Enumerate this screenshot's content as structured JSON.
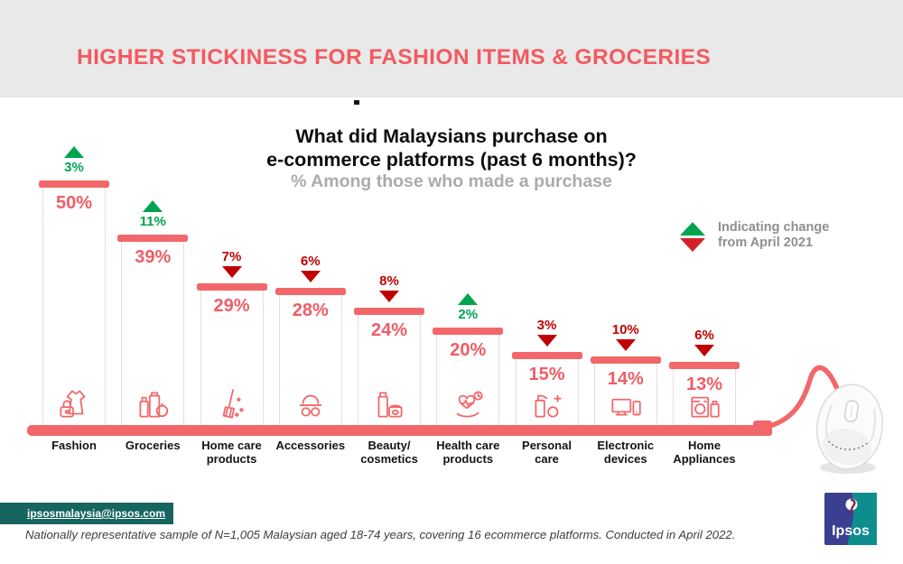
{
  "header": {
    "title": "HIGHER STICKINESS FOR FASHION ITEMS & GROCERIES"
  },
  "chart": {
    "title_line1": "What did Malaysians purchase on",
    "title_line2": "e-commerce platforms (past 6 months)?",
    "subtitle": "% Among those who made a purchase",
    "legend_line1": "Indicating change",
    "legend_line2": "from April 2021"
  },
  "chart_data": {
    "type": "bar",
    "title": "What did Malaysians purchase on e-commerce platforms (past 6 months)?",
    "subtitle": "% Among those who made a purchase",
    "unit": "percent of purchasers",
    "ylim": [
      0,
      50
    ],
    "grid": false,
    "legend_position": "right",
    "categories": [
      "Fashion",
      "Groceries",
      "Home care products",
      "Accessories",
      "Beauty/cosmetics",
      "Health care products",
      "Personal care",
      "Electronic devices",
      "Home Appliances"
    ],
    "values": [
      50,
      39,
      29,
      28,
      24,
      20,
      15,
      14,
      13
    ],
    "change_vs_april_2021": [
      {
        "category": "Fashion",
        "change_pct": 3,
        "direction": "up"
      },
      {
        "category": "Groceries",
        "change_pct": 11,
        "direction": "up"
      },
      {
        "category": "Home care products",
        "change_pct": 7,
        "direction": "down"
      },
      {
        "category": "Accessories",
        "change_pct": 6,
        "direction": "down"
      },
      {
        "category": "Beauty/cosmetics",
        "change_pct": 8,
        "direction": "down"
      },
      {
        "category": "Health care products",
        "change_pct": 2,
        "direction": "up"
      },
      {
        "category": "Personal care",
        "change_pct": 3,
        "direction": "down"
      },
      {
        "category": "Electronic devices",
        "change_pct": 10,
        "direction": "down"
      },
      {
        "category": "Home Appliances",
        "change_pct": 6,
        "direction": "down"
      }
    ],
    "items": [
      {
        "category_display": "Fashion",
        "value": 50,
        "value_label": "50%",
        "change_label": "3%",
        "direction": "up",
        "icon": "fashion-icon"
      },
      {
        "category_display": "Groceries",
        "value": 39,
        "value_label": "39%",
        "change_label": "11%",
        "direction": "up",
        "icon": "groceries-icon"
      },
      {
        "category_display": "Home care\nproducts",
        "value": 29,
        "value_label": "29%",
        "change_label": "7%",
        "direction": "down",
        "icon": "home-care-icon"
      },
      {
        "category_display": "Accessories",
        "value": 28,
        "value_label": "28%",
        "change_label": "6%",
        "direction": "down",
        "icon": "accessories-icon"
      },
      {
        "category_display": "Beauty/\ncosmetics",
        "value": 24,
        "value_label": "24%",
        "change_label": "8%",
        "direction": "down",
        "icon": "beauty-cosmetics-icon"
      },
      {
        "category_display": "Health care\nproducts",
        "value": 20,
        "value_label": "20%",
        "change_label": "2%",
        "direction": "up",
        "icon": "health-care-icon"
      },
      {
        "category_display": "Personal\ncare",
        "value": 15,
        "value_label": "15%",
        "change_label": "3%",
        "direction": "down",
        "icon": "personal-care-icon"
      },
      {
        "category_display": "Electronic\ndevices",
        "value": 14,
        "value_label": "14%",
        "change_label": "10%",
        "direction": "down",
        "icon": "electronic-devices-icon"
      },
      {
        "category_display": "Home\nAppliances",
        "value": 13,
        "value_label": "13%",
        "change_label": "6%",
        "direction": "down",
        "icon": "home-appliances-icon"
      }
    ],
    "colors": {
      "bar_accent": "#F2676A",
      "value_label": "#EE5D66",
      "increase": "#00A44F",
      "decrease": "#C00000",
      "legend_decrease": "#D42127",
      "header_title": "#F25A60",
      "footer_banner": "#17655F"
    }
  },
  "footer": {
    "email": "ipsosmalaysia@ipsos.com",
    "note": "Nationally representative sample of N=1,005 Malaysian aged 18-74 years, covering 16 ecommerce platforms. Conducted in April 2022.",
    "logo_text": "Ipsos"
  }
}
